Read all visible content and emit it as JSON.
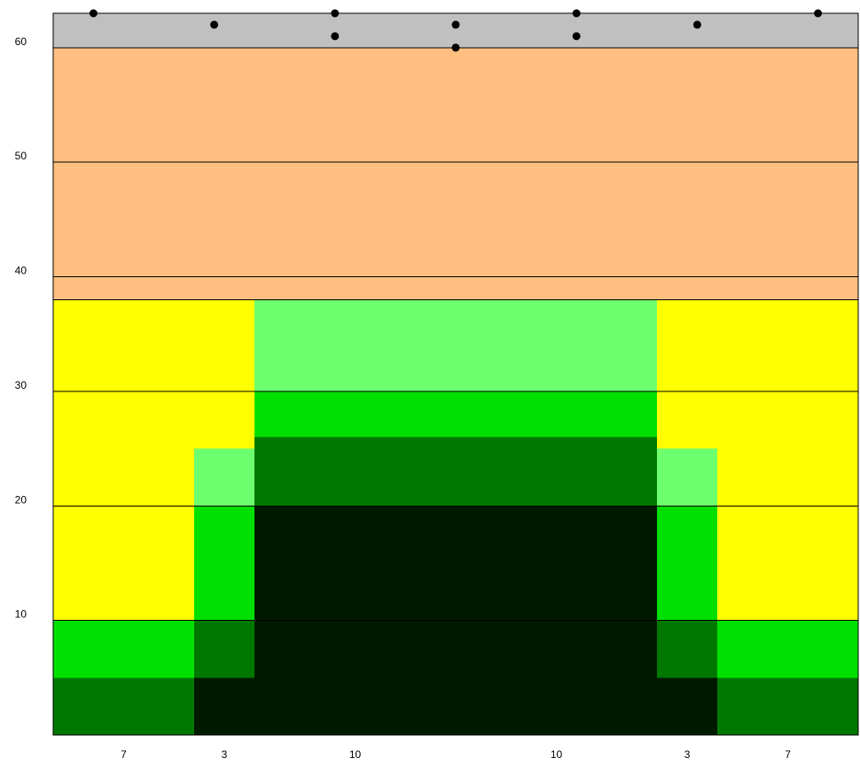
{
  "chart_data": {
    "type": "heatmap",
    "title": "",
    "xlabel": "",
    "ylabel": "",
    "xlim": [
      0,
      40
    ],
    "ylim": [
      0,
      63
    ],
    "y_ticks": [
      10,
      20,
      30,
      40,
      50,
      60
    ],
    "y_tick_labels": [
      "10",
      "20",
      "30",
      "40",
      "50",
      "60"
    ],
    "x_column_widths": [
      7,
      3,
      10,
      10,
      3,
      7
    ],
    "x_tick_labels": [
      "7",
      "3",
      "10",
      "10",
      "3",
      "7"
    ],
    "grid_lines_y": [
      10,
      20,
      30,
      40,
      50,
      60
    ],
    "colors": {
      "gray": "#c0c0c0",
      "orange": "#ffbf80",
      "yellow": "#ffff00",
      "light_green": "#6dff6d",
      "green": "#00e000",
      "dark_green": "#007800",
      "darkest_green": "#001a00",
      "point": "#000000",
      "line": "#000000"
    },
    "regions": [
      {
        "x": [
          0,
          40
        ],
        "y": [
          60,
          63
        ],
        "color": "gray"
      },
      {
        "x": [
          0,
          40
        ],
        "y": [
          38,
          60
        ],
        "color": "orange"
      },
      {
        "x": [
          0,
          10
        ],
        "y": [
          10,
          38
        ],
        "color": "yellow"
      },
      {
        "x": [
          30,
          40
        ],
        "y": [
          10,
          38
        ],
        "color": "yellow"
      },
      {
        "x": [
          10,
          30
        ],
        "y": [
          30,
          38
        ],
        "color": "light_green"
      },
      {
        "x": [
          10,
          30
        ],
        "y": [
          26,
          30
        ],
        "color": "green"
      },
      {
        "x": [
          10,
          30
        ],
        "y": [
          20,
          26
        ],
        "color": "dark_green"
      },
      {
        "x": [
          10,
          30
        ],
        "y": [
          0,
          20
        ],
        "color": "darkest_green"
      },
      {
        "x": [
          7,
          10
        ],
        "y": [
          20,
          25
        ],
        "color": "light_green"
      },
      {
        "x": [
          30,
          33
        ],
        "y": [
          20,
          25
        ],
        "color": "light_green"
      },
      {
        "x": [
          7,
          10
        ],
        "y": [
          10,
          20
        ],
        "color": "green"
      },
      {
        "x": [
          30,
          33
        ],
        "y": [
          10,
          20
        ],
        "color": "green"
      },
      {
        "x": [
          0,
          7
        ],
        "y": [
          5,
          10
        ],
        "color": "green"
      },
      {
        "x": [
          33,
          40
        ],
        "y": [
          5,
          10
        ],
        "color": "green"
      },
      {
        "x": [
          7,
          10
        ],
        "y": [
          5,
          10
        ],
        "color": "dark_green"
      },
      {
        "x": [
          30,
          33
        ],
        "y": [
          5,
          10
        ],
        "color": "dark_green"
      },
      {
        "x": [
          0,
          7
        ],
        "y": [
          0,
          5
        ],
        "color": "dark_green"
      },
      {
        "x": [
          33,
          40
        ],
        "y": [
          0,
          5
        ],
        "color": "dark_green"
      },
      {
        "x": [
          7,
          10
        ],
        "y": [
          0,
          5
        ],
        "color": "darkest_green"
      },
      {
        "x": [
          30,
          33
        ],
        "y": [
          0,
          5
        ],
        "color": "darkest_green"
      }
    ],
    "points": [
      {
        "x": 2,
        "y": 63
      },
      {
        "x": 8,
        "y": 62
      },
      {
        "x": 14,
        "y": 63
      },
      {
        "x": 14,
        "y": 61
      },
      {
        "x": 20,
        "y": 62
      },
      {
        "x": 20,
        "y": 60
      },
      {
        "x": 26,
        "y": 63
      },
      {
        "x": 26,
        "y": 61
      },
      {
        "x": 32,
        "y": 62
      },
      {
        "x": 38,
        "y": 63
      }
    ],
    "grid": true,
    "legend": "none"
  }
}
